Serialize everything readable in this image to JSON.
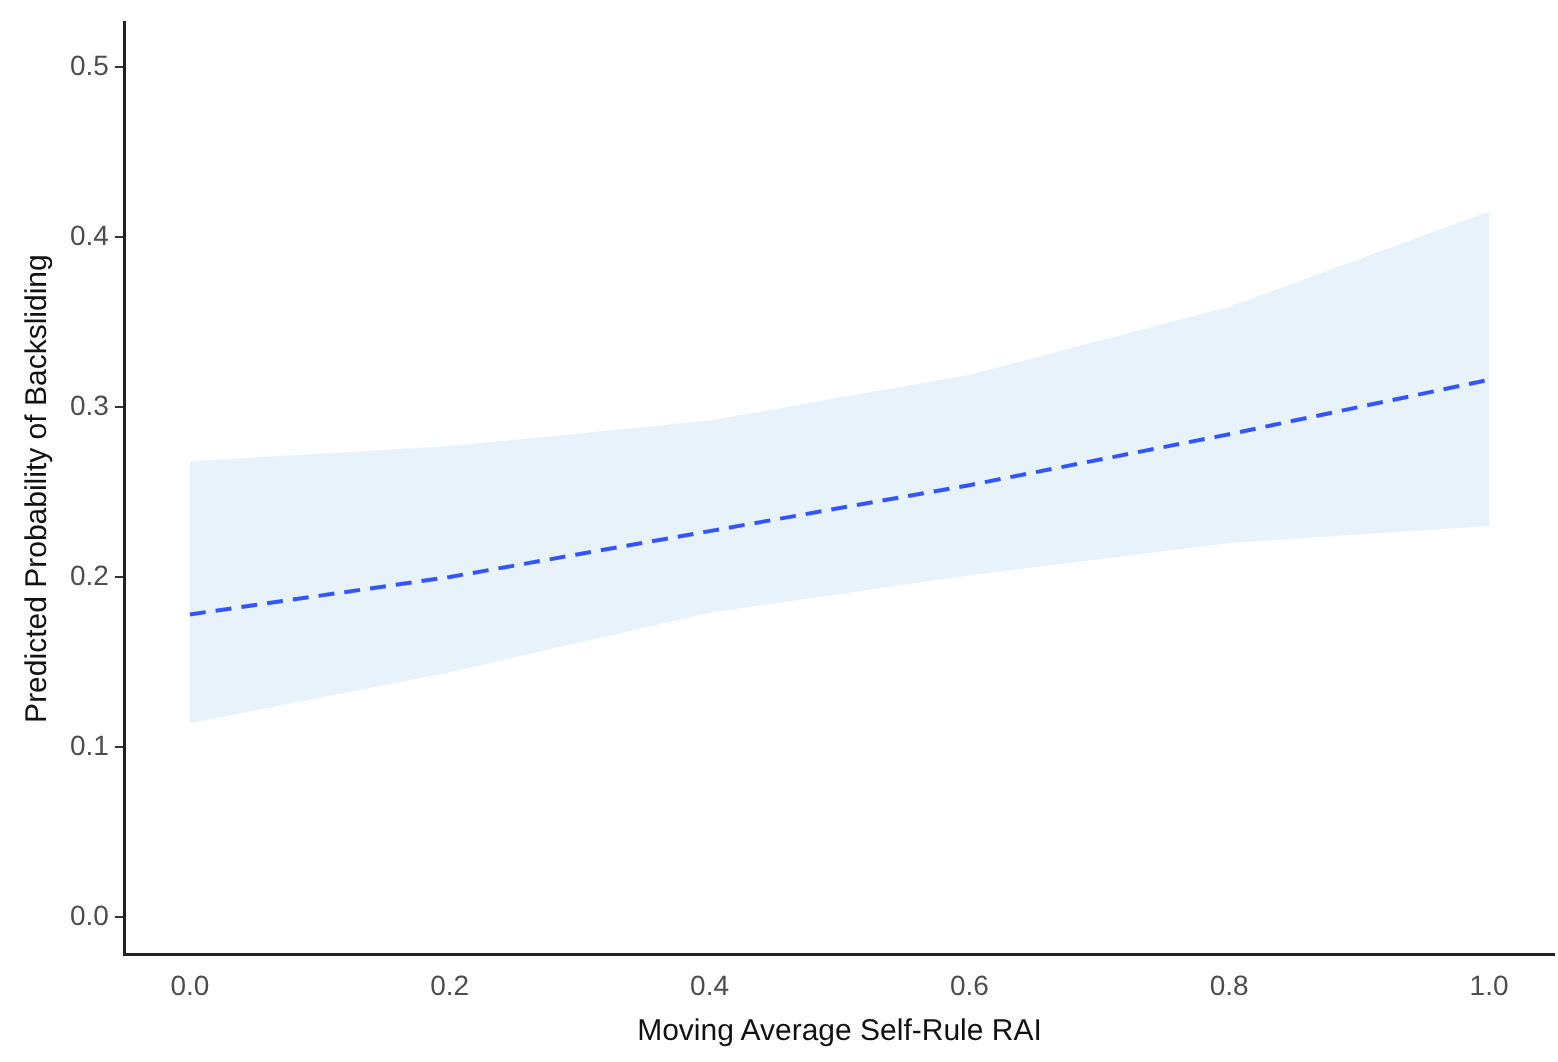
{
  "chart_data": {
    "type": "line",
    "xlabel": "Moving Average Self-Rule RAI",
    "ylabel": "Predicted Probability of Backsliding",
    "x": [
      0,
      0.2,
      0.4,
      0.6,
      0.8,
      1.0
    ],
    "series": [
      {
        "color": "#3355ff",
        "line_style": "dashed",
        "values": [
          0.178,
          0.2,
          0.227,
          0.254,
          0.284,
          0.316
        ],
        "lower": [
          0.114,
          0.144,
          0.179,
          0.201,
          0.22,
          0.23
        ],
        "upper": [
          0.268,
          0.277,
          0.292,
          0.319,
          0.359,
          0.415
        ]
      }
    ],
    "xlim": [
      -0.05,
      1.05
    ],
    "ylim": [
      -0.022,
      0.526
    ],
    "xticks": [
      {
        "value": 0,
        "label": "0.0"
      },
      0.2,
      0.4,
      0.6,
      0.8,
      {
        "value": 1,
        "label": "1.0"
      }
    ],
    "yticks": [
      {
        "value": 0,
        "label": "0.0"
      },
      0.1,
      0.2,
      0.3,
      0.4,
      0.5
    ],
    "grid": false,
    "legend": false,
    "marker": "none"
  }
}
